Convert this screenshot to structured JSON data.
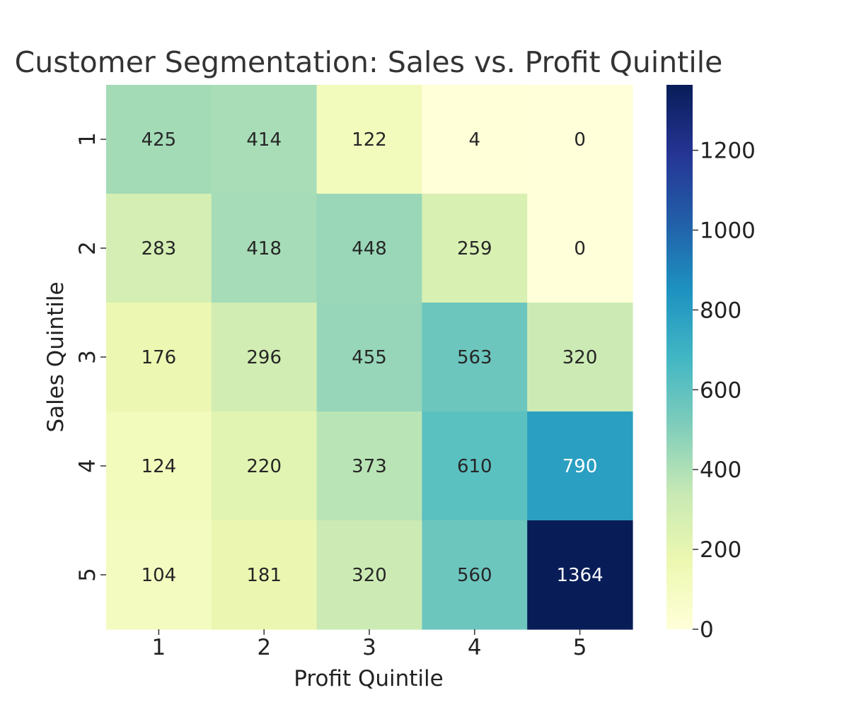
{
  "chart_data": {
    "type": "heatmap",
    "title": "Customer Segmentation: Sales vs. Profit Quintile",
    "xlabel": "Profit Quintile",
    "ylabel": "Sales Quintile",
    "x_categories": [
      "1",
      "2",
      "3",
      "4",
      "5"
    ],
    "y_categories": [
      "1",
      "2",
      "3",
      "4",
      "5"
    ],
    "values": [
      [
        425,
        414,
        122,
        4,
        0
      ],
      [
        283,
        418,
        448,
        259,
        0
      ],
      [
        176,
        296,
        455,
        563,
        320
      ],
      [
        124,
        220,
        373,
        610,
        790
      ],
      [
        104,
        181,
        320,
        560,
        1364
      ]
    ],
    "colormap": "YlGnBu",
    "colorbar": {
      "vmin": 0,
      "vmax": 1364,
      "ticks": [
        0,
        200,
        400,
        600,
        800,
        1000,
        1200
      ]
    },
    "annotations": true,
    "grid": false,
    "legend": "colorbar-right"
  }
}
